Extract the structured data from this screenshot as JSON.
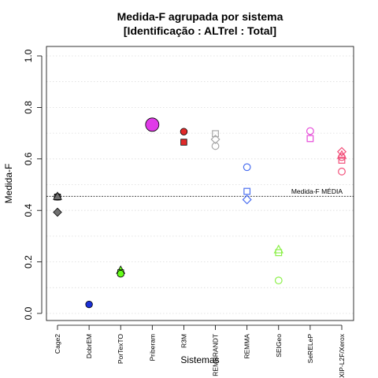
{
  "chart_data": {
    "type": "scatter",
    "title_line1": "Medida-F agrupada por sistema",
    "title_line2": "[Identificação : ALTrel : Total]",
    "xlabel": "Sistemas",
    "ylabel": "Medida-F",
    "ylim": [
      0,
      1
    ],
    "yticks": [
      "0.0",
      "0.2",
      "0.4",
      "0.6",
      "0.8",
      "1.0"
    ],
    "grid": true,
    "categories": [
      "Cage2",
      "DobrEM",
      "PorTexTO",
      "Priberam",
      "R3M",
      "REMBRANDT",
      "REMMA",
      "SEIGeo",
      "SeRELeP",
      "XIP-L2F/Xerox"
    ],
    "reference_line": {
      "value": 0.455,
      "label": "Medida-F MÉDIA"
    },
    "points": [
      {
        "category": "Cage2",
        "marker": "square",
        "filled": true,
        "color": "#707070",
        "value": 0.452
      },
      {
        "category": "Cage2",
        "marker": "circle",
        "filled": true,
        "color": "#707070",
        "value": 0.453
      },
      {
        "category": "Cage2",
        "marker": "triangle",
        "filled": true,
        "color": "#707070",
        "value": 0.455
      },
      {
        "category": "Cage2",
        "marker": "diamond",
        "filled": true,
        "color": "#707070",
        "value": 0.393
      },
      {
        "category": "DobrEM",
        "marker": "circle",
        "filled": true,
        "color": "#1a2fd6",
        "value": 0.035
      },
      {
        "category": "PorTexTO",
        "marker": "triangle",
        "filled": true,
        "color": "#66ff1a",
        "value": 0.168
      },
      {
        "category": "PorTexTO",
        "marker": "square",
        "filled": true,
        "color": "#66ff1a",
        "value": 0.158
      },
      {
        "category": "PorTexTO",
        "marker": "circle",
        "filled": true,
        "color": "#66ff1a",
        "value": 0.154
      },
      {
        "category": "Priberam",
        "marker": "circle-large",
        "filled": true,
        "color": "#e03ae8",
        "value": 0.733
      },
      {
        "category": "R3M",
        "marker": "circle",
        "filled": true,
        "color": "#e02a2a",
        "value": 0.706
      },
      {
        "category": "R3M",
        "marker": "square",
        "filled": true,
        "color": "#e02a2a",
        "value": 0.665
      },
      {
        "category": "REMBRANDT",
        "marker": "square",
        "filled": false,
        "color": "#a8a8a8",
        "value": 0.698
      },
      {
        "category": "REMBRANDT",
        "marker": "diamond",
        "filled": false,
        "color": "#a8a8a8",
        "value": 0.676
      },
      {
        "category": "REMBRANDT",
        "marker": "circle",
        "filled": false,
        "color": "#a8a8a8",
        "value": 0.65
      },
      {
        "category": "REMMA",
        "marker": "circle",
        "filled": false,
        "color": "#4b6ff0",
        "value": 0.568
      },
      {
        "category": "REMMA",
        "marker": "square",
        "filled": false,
        "color": "#4b6ff0",
        "value": 0.474
      },
      {
        "category": "REMMA",
        "marker": "diamond",
        "filled": false,
        "color": "#4b6ff0",
        "value": 0.442
      },
      {
        "category": "SEIGeo",
        "marker": "triangle",
        "filled": false,
        "color": "#8cf04a",
        "value": 0.248
      },
      {
        "category": "SEIGeo",
        "marker": "square",
        "filled": false,
        "color": "#8cf04a",
        "value": 0.236
      },
      {
        "category": "SEIGeo",
        "marker": "circle",
        "filled": false,
        "color": "#8cf04a",
        "value": 0.128
      },
      {
        "category": "SeRELeP",
        "marker": "circle",
        "filled": false,
        "color": "#e64ad8",
        "value": 0.708
      },
      {
        "category": "SeRELeP",
        "marker": "square",
        "filled": false,
        "color": "#e64ad8",
        "value": 0.679
      },
      {
        "category": "XIP-L2F/Xerox",
        "marker": "diamond",
        "filled": false,
        "color": "#f2507a",
        "value": 0.628
      },
      {
        "category": "XIP-L2F/Xerox",
        "marker": "triangle",
        "filled": false,
        "color": "#f2507a",
        "value": 0.615
      },
      {
        "category": "XIP-L2F/Xerox",
        "marker": "circle",
        "filled": false,
        "color": "#f2507a",
        "value": 0.607
      },
      {
        "category": "XIP-L2F/Xerox",
        "marker": "square",
        "filled": false,
        "color": "#f2507a",
        "value": 0.595
      },
      {
        "category": "XIP-L2F/Xerox",
        "marker": "circle",
        "filled": false,
        "color": "#f2507a",
        "value": 0.551
      }
    ]
  }
}
